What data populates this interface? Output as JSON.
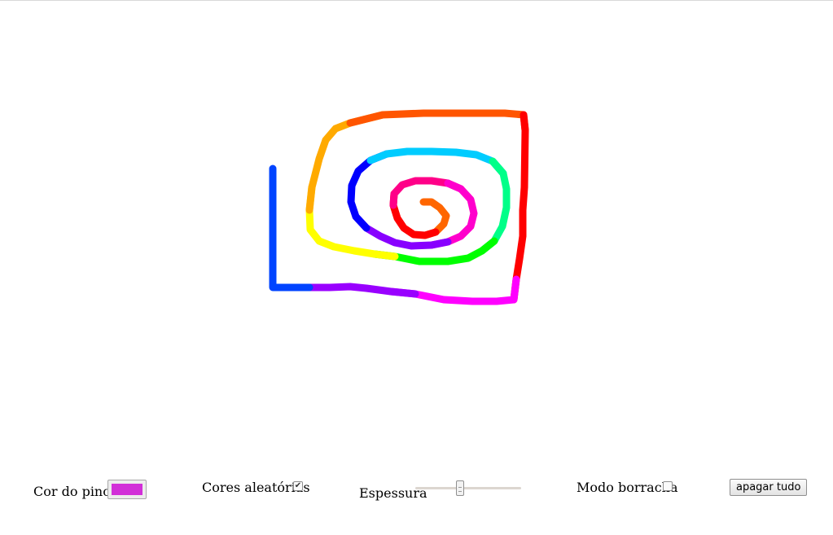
{
  "controls": {
    "brush_color_label": "Cor do pincel",
    "brush_color_value": "#d22fd8",
    "random_colors_label": "Cores aleatórias",
    "random_colors_checked": true,
    "thickness_label": "Espessura",
    "thickness_fraction": 0.42,
    "eraser_label": "Modo borracha",
    "eraser_checked": false,
    "clear_button_label": "apagar tudo"
  },
  "drawing": {
    "stroke": "rainbow-spiral",
    "colors": [
      "#ff6600",
      "#ff0000",
      "#ff0088",
      "#ff00cc",
      "#8800ff",
      "#0000ff",
      "#00ccff",
      "#00ff88",
      "#00ff00",
      "#ffff00",
      "#ffaa00",
      "#ff5500",
      "#ff0000",
      "#ff00ff",
      "#9900ff",
      "#0044ff"
    ]
  }
}
